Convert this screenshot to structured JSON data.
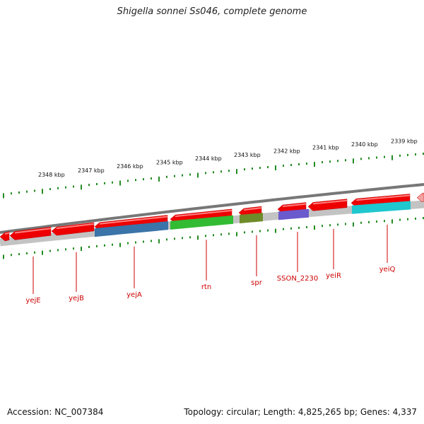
{
  "title": "Shigella sonnei Ss046, complete genome",
  "footer": {
    "accession": "Accession: NC_007384",
    "summary": "Topology: circular; Length: 4,825,265 bp; Genes: 4,337"
  },
  "colors": {
    "gene_arrow": "#ee0000",
    "backbone": "#777777",
    "tick": "#228b22",
    "label": "#cc0000",
    "gray_track": "#bdbdbd",
    "yejA": "#3a74a8",
    "rtn": "#33bb33",
    "spr": "#6e8b2a",
    "SSON_2230": "#6a5acd",
    "yeiQ": "#1fc7cf"
  },
  "scale": {
    "unit": "kbp",
    "labels": [
      "2348 kbp",
      "2347 kbp",
      "2346 kbp",
      "2345 kbp",
      "2344 kbp",
      "2343 kbp",
      "2342 kbp",
      "2341 kbp",
      "2340 kbp",
      "2339 kbp"
    ]
  },
  "genes": [
    {
      "name": "yejE"
    },
    {
      "name": "yejB"
    },
    {
      "name": "yejA"
    },
    {
      "name": "rtn"
    },
    {
      "name": "spr"
    },
    {
      "name": "SSON_2230"
    },
    {
      "name": "yeiR"
    },
    {
      "name": "yeiQ"
    }
  ]
}
